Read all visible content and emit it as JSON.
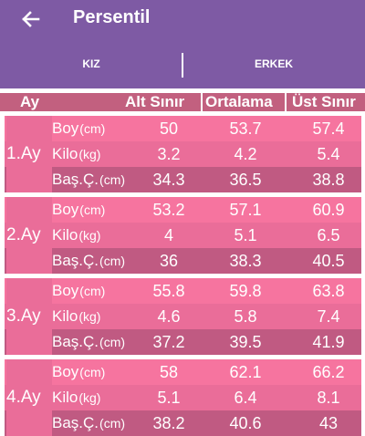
{
  "app": {
    "title": "Persentil"
  },
  "tabs": [
    {
      "label": "KIZ",
      "selected": true
    },
    {
      "label": "ERKEK",
      "selected": false
    }
  ],
  "colors": {
    "appbar": "#7e5aa4",
    "header": "#c2607f",
    "row_light": "#f6749f",
    "row_mid": "#ea6d99",
    "row_dark": "#c05a82"
  },
  "table": {
    "headers": {
      "ay": "Ay",
      "alt": "Alt Sınır",
      "ort": "Ortalama",
      "ust": "Üst Sınır"
    },
    "groups": [
      {
        "label": "1.Ay",
        "rows": [
          {
            "name": "Boy",
            "unit": "(cm)",
            "alt": "50",
            "ort": "53.7",
            "ust": "57.4"
          },
          {
            "name": "Kilo",
            "unit": "(kg)",
            "alt": "3.2",
            "ort": "4.2",
            "ust": "5.4"
          },
          {
            "name": "Baş.Ç.",
            "unit": "(cm)",
            "alt": "34.3",
            "ort": "36.5",
            "ust": "38.8"
          }
        ]
      },
      {
        "label": "2.Ay",
        "rows": [
          {
            "name": "Boy",
            "unit": "(cm)",
            "alt": "53.2",
            "ort": "57.1",
            "ust": "60.9"
          },
          {
            "name": "Kilo",
            "unit": "(kg)",
            "alt": "4",
            "ort": "5.1",
            "ust": "6.5"
          },
          {
            "name": "Baş.Ç.",
            "unit": "(cm)",
            "alt": "36",
            "ort": "38.3",
            "ust": "40.5"
          }
        ]
      },
      {
        "label": "3.Ay",
        "rows": [
          {
            "name": "Boy",
            "unit": "(cm)",
            "alt": "55.8",
            "ort": "59.8",
            "ust": "63.8"
          },
          {
            "name": "Kilo",
            "unit": "(kg)",
            "alt": "4.6",
            "ort": "5.8",
            "ust": "7.4"
          },
          {
            "name": "Baş.Ç.",
            "unit": "(cm)",
            "alt": "37.2",
            "ort": "39.5",
            "ust": "41.9"
          }
        ]
      },
      {
        "label": "4.Ay",
        "rows": [
          {
            "name": "Boy",
            "unit": "(cm)",
            "alt": "58",
            "ort": "62.1",
            "ust": "66.2"
          },
          {
            "name": "Kilo",
            "unit": "(kg)",
            "alt": "5.1",
            "ort": "6.4",
            "ust": "8.1"
          },
          {
            "name": "Baş.Ç.",
            "unit": "(cm)",
            "alt": "38.2",
            "ort": "40.6",
            "ust": "43"
          }
        ]
      }
    ]
  }
}
